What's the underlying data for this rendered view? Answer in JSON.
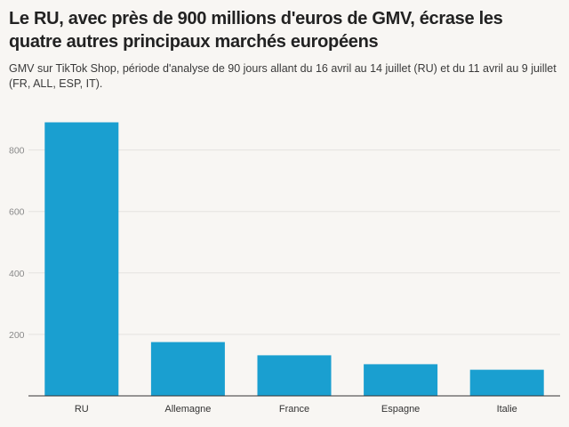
{
  "title": "Le RU, avec près de 900 millions d'euros de GMV, écrase les quatre autres principaux marchés européens",
  "subtitle": "GMV sur TikTok Shop, période d'analyse de 90 jours allant du 16 avril au 14 juillet (RU) et du 11 avril au 9 juillet (FR, ALL, ESP, IT).",
  "colors": {
    "bar": "#1a9fd0",
    "grid": "#e4e2df",
    "axis": "#333333",
    "background": "#f8f6f3"
  },
  "chart_data": {
    "type": "bar",
    "categories": [
      "RU",
      "Allemagne",
      "France",
      "Espagne",
      "Italie"
    ],
    "values": [
      890,
      175,
      132,
      103,
      85
    ],
    "title": "Le RU, avec près de 900 millions d'euros de GMV, écrase les quatre autres principaux marchés européens",
    "subtitle": "GMV sur TikTok Shop, période d'analyse de 90 jours allant du 16 avril au 14 juillet (RU) et du 11 avril au 9 juillet (FR, ALL, ESP, IT).",
    "xlabel": "",
    "ylabel": "",
    "ylim": [
      0,
      900
    ],
    "yticks": [
      200,
      400,
      600,
      800
    ],
    "grid": true,
    "legend": "none"
  }
}
